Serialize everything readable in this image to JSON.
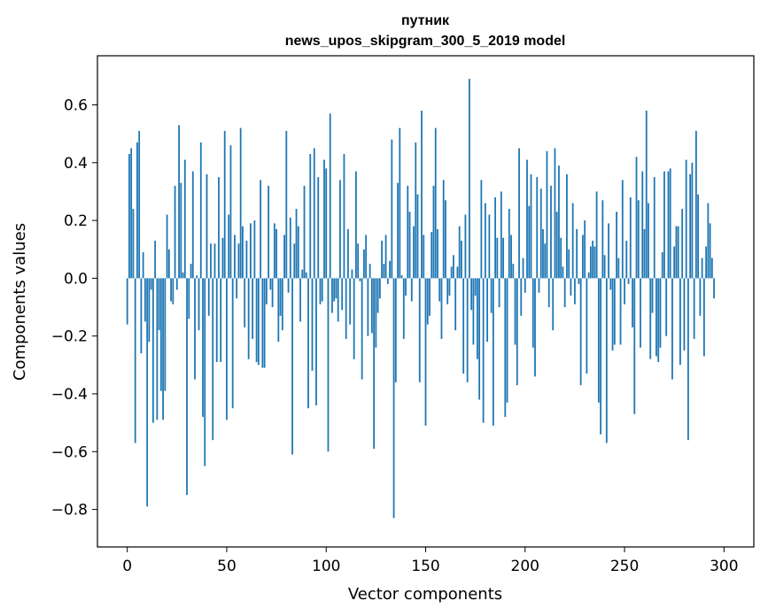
{
  "chart_data": {
    "type": "bar",
    "title": "путник",
    "subtitle": "news_upos_skipgram_300_5_2019 model",
    "xlabel": "Vector components",
    "ylabel": "Components values",
    "xlim": [
      -15,
      315
    ],
    "ylim": [
      -0.93,
      0.77
    ],
    "xticks": [
      0,
      50,
      100,
      150,
      200,
      250,
      300
    ],
    "xtick_labels": [
      "0",
      "50",
      "100",
      "150",
      "200",
      "250",
      "300"
    ],
    "yticks": [
      -0.8,
      -0.6,
      -0.4,
      -0.2,
      0.0,
      0.2,
      0.4,
      0.6
    ],
    "ytick_labels": [
      "−0.8",
      "−0.6",
      "−0.4",
      "−0.2",
      "0.0",
      "0.2",
      "0.4",
      "0.6"
    ],
    "grid": false,
    "bar_color": "#1f77b4",
    "values": [
      -0.16,
      0.43,
      0.45,
      0.24,
      -0.57,
      0.47,
      0.51,
      -0.26,
      0.09,
      -0.15,
      -0.79,
      -0.22,
      -0.04,
      -0.5,
      0.13,
      -0.49,
      -0.18,
      -0.39,
      -0.49,
      -0.39,
      0.22,
      0.1,
      -0.08,
      -0.09,
      0.32,
      -0.04,
      0.53,
      0.33,
      0.02,
      0.41,
      -0.75,
      -0.14,
      0.05,
      0.37,
      -0.35,
      0.01,
      -0.18,
      0.47,
      -0.48,
      -0.65,
      0.36,
      -0.13,
      0.12,
      -0.56,
      0.12,
      -0.29,
      0.35,
      -0.29,
      0.14,
      0.51,
      -0.49,
      0.22,
      0.46,
      -0.45,
      0.15,
      -0.07,
      0.12,
      0.52,
      0.18,
      -0.17,
      0.13,
      -0.28,
      0.19,
      -0.21,
      0.2,
      -0.29,
      -0.3,
      0.34,
      -0.31,
      -0.31,
      -0.09,
      0.32,
      -0.04,
      -0.1,
      0.19,
      0.17,
      -0.22,
      -0.13,
      -0.18,
      0.15,
      0.51,
      -0.05,
      0.21,
      -0.61,
      0.12,
      0.24,
      0.18,
      -0.15,
      0.03,
      0.32,
      0.02,
      -0.45,
      0.43,
      -0.32,
      0.45,
      -0.44,
      0.35,
      -0.09,
      -0.08,
      0.41,
      0.38,
      -0.6,
      0.57,
      -0.12,
      -0.08,
      -0.07,
      -0.15,
      0.34,
      -0.11,
      0.43,
      -0.21,
      0.17,
      -0.16,
      0.03,
      -0.28,
      0.37,
      0.12,
      -0.01,
      -0.35,
      0.1,
      0.15,
      -0.2,
      0.05,
      -0.19,
      -0.59,
      -0.24,
      -0.12,
      -0.07,
      0.13,
      0.05,
      0.15,
      -0.02,
      0.06,
      0.48,
      -0.83,
      -0.36,
      0.33,
      0.52,
      0.01,
      -0.21,
      -0.06,
      0.32,
      0.23,
      -0.08,
      0.18,
      0.47,
      0.29,
      -0.36,
      0.58,
      0.15,
      -0.51,
      -0.16,
      -0.13,
      0.16,
      0.32,
      0.52,
      0.17,
      -0.08,
      -0.21,
      0.34,
      0.27,
      -0.09,
      -0.06,
      0.04,
      0.08,
      -0.18,
      0.04,
      0.18,
      0.13,
      -0.33,
      0.22,
      -0.36,
      0.69,
      -0.11,
      -0.23,
      -0.06,
      -0.28,
      -0.42,
      0.34,
      -0.5,
      0.26,
      -0.22,
      0.22,
      -0.12,
      -0.51,
      0.28,
      0.14,
      -0.1,
      0.3,
      0.14,
      -0.48,
      -0.43,
      0.24,
      0.15,
      0.05,
      -0.23,
      -0.37,
      0.45,
      -0.13,
      0.07,
      -0.05,
      0.41,
      0.25,
      0.36,
      -0.24,
      -0.34,
      0.35,
      -0.05,
      0.31,
      0.17,
      0.12,
      0.44,
      -0.1,
      0.32,
      -0.18,
      0.45,
      0.23,
      0.39,
      0.14,
      0.04,
      -0.1,
      0.36,
      0.1,
      -0.06,
      0.26,
      -0.09,
      0.17,
      -0.02,
      -0.37,
      0.15,
      0.2,
      -0.33,
      0.02,
      0.11,
      0.13,
      0.11,
      0.3,
      -0.43,
      -0.54,
      0.27,
      0.08,
      -0.57,
      0.19,
      -0.04,
      -0.25,
      -0.23,
      0.23,
      0.07,
      -0.23,
      0.34,
      -0.09,
      0.13,
      -0.02,
      0.28,
      -0.17,
      -0.47,
      0.42,
      0.27,
      -0.24,
      0.37,
      0.17,
      0.58,
      0.26,
      -0.28,
      -0.12,
      0.35,
      -0.27,
      -0.29,
      -0.24,
      0.09,
      0.37,
      -0.2,
      0.37,
      0.38,
      -0.35,
      0.11,
      0.18,
      0.18,
      -0.3,
      0.24,
      -0.25,
      0.41,
      -0.56,
      0.36,
      0.4,
      -0.21,
      0.51,
      0.29,
      -0.13,
      0.07,
      -0.27,
      0.11,
      0.26,
      0.19,
      0.07,
      -0.07
    ]
  }
}
